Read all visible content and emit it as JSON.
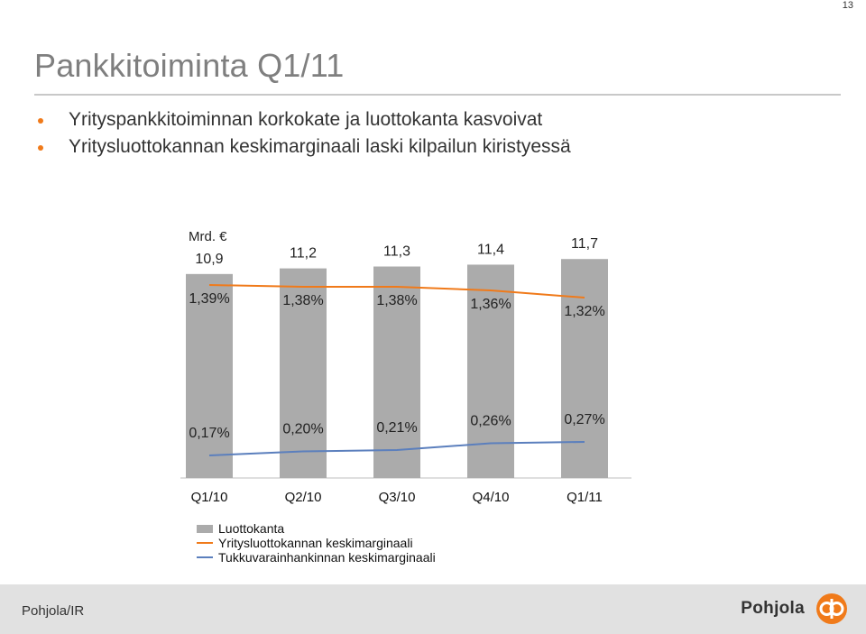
{
  "page_number": "13",
  "title": "Pankkitoiminta Q1/11",
  "bullets": [
    "Yrityspankkitoiminnan korkokate ja luottokanta kasvoivat",
    "Yritysluottokannan keskimarginaali laski kilpailun kiristyessä"
  ],
  "colors": {
    "accent": "#f07a1a",
    "bar": "#ababab",
    "line_orange": "#f07a1a",
    "line_blue": "#5b7fbd"
  },
  "chart_data": {
    "type": "bar",
    "unit_label": "Mrd. €",
    "categories": [
      "Q1/10",
      "Q2/10",
      "Q3/10",
      "Q4/10",
      "Q1/11"
    ],
    "series": [
      {
        "name": "Luottokanta",
        "kind": "bar",
        "values": [
          10.9,
          11.2,
          11.3,
          11.4,
          11.7
        ],
        "labels": [
          "10,9",
          "11,2",
          "11,3",
          "11,4",
          "11,7"
        ]
      },
      {
        "name": "Yritysluottokannan keskimarginaali",
        "kind": "line",
        "values": [
          1.39,
          1.38,
          1.38,
          1.36,
          1.32
        ],
        "labels": [
          "1,39%",
          "1,38%",
          "1,38%",
          "1,36%",
          "1,32%"
        ]
      },
      {
        "name": "Tukkuvarainhankinnan keskimarginaali",
        "kind": "line",
        "values": [
          0.17,
          0.2,
          0.21,
          0.26,
          0.27
        ],
        "labels": [
          "0,17%",
          "0,20%",
          "0,21%",
          "0,26%",
          "0,27%"
        ]
      }
    ],
    "legend_position": "bottom-left",
    "grid": false
  },
  "footer": {
    "left_text": "Pohjola/IR",
    "brand": "Pohjola",
    "logo_icon": "pohjola-logo-icon"
  }
}
